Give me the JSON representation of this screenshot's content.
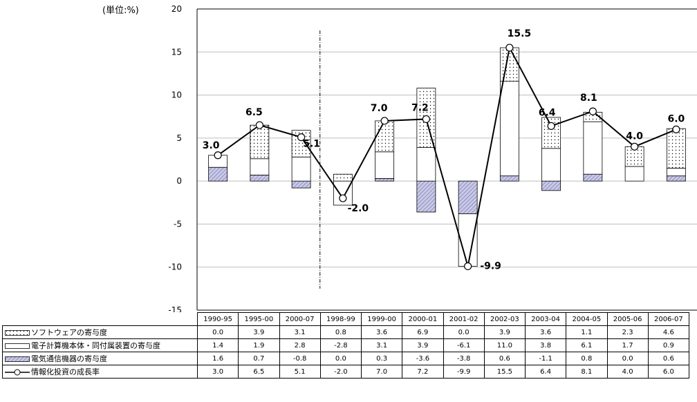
{
  "unit_label": "(単位:%)",
  "chart_data": {
    "type": "bar",
    "categories": [
      "1990-95",
      "1995-00",
      "2000-07",
      "1998-99",
      "1999-00",
      "2000-01",
      "2001-02",
      "2002-03",
      "2003-04",
      "2004-05",
      "2005-06",
      "2006-07"
    ],
    "ylim": [
      -15,
      20
    ],
    "yticks": [
      20,
      15,
      10,
      5,
      0,
      -5,
      -10,
      -15
    ],
    "grid": true,
    "stacked": true,
    "series": [
      {
        "name": "ソフトウェアの寄与度",
        "kind": "bar",
        "pattern": "dots",
        "values": [
          0.0,
          3.9,
          3.1,
          0.8,
          3.6,
          6.9,
          0.0,
          3.9,
          3.6,
          1.1,
          2.3,
          4.6
        ],
        "display": [
          "0.0",
          "3.9",
          "3.1",
          "0.8",
          "3.6",
          "6.9",
          "0.0",
          "3.9",
          "3.6",
          "1.1",
          "2.3",
          "4.6"
        ]
      },
      {
        "name": "電子計算機本体・同付属装置の寄与度",
        "kind": "bar",
        "pattern": "white",
        "values": [
          1.4,
          1.9,
          2.8,
          -2.8,
          3.1,
          3.9,
          -6.1,
          11.0,
          3.8,
          6.1,
          1.7,
          0.9
        ],
        "display": [
          "1.4",
          "1.9",
          "2.8",
          "-2.8",
          "3.1",
          "3.9",
          "-6.1",
          "11.0",
          "3.8",
          "6.1",
          "1.7",
          "0.9"
        ]
      },
      {
        "name": "電気通信機器の寄与度",
        "kind": "bar",
        "pattern": "hatch",
        "values": [
          1.6,
          0.7,
          -0.8,
          0.0,
          0.3,
          -3.6,
          -3.8,
          0.6,
          -1.1,
          0.8,
          0.0,
          0.6
        ],
        "display": [
          "1.6",
          "0.7",
          "-0.8",
          "0.0",
          "0.3",
          "-3.6",
          "-3.8",
          "0.6",
          "-1.1",
          "0.8",
          "0.0",
          "0.6"
        ]
      },
      {
        "name": "情報化投資の成長率",
        "kind": "line",
        "values": [
          3.0,
          6.5,
          5.1,
          -2.0,
          7.0,
          7.2,
          -9.9,
          15.5,
          6.4,
          8.1,
          4.0,
          6.0
        ],
        "display": [
          "3.0",
          "6.5",
          "5.1",
          "-2.0",
          "7.0",
          "7.2",
          "-9.9",
          "15.5",
          "6.4",
          "8.1",
          "4.0",
          "6.0"
        ]
      }
    ],
    "data_labels": [
      "3.0",
      "6.5",
      "5.1",
      "-2.0",
      "7.0",
      "7.2",
      "-9.9",
      "15.5",
      "6.4",
      "8.1",
      "4.0",
      "6.0"
    ],
    "divider_after_index": 2,
    "table_below": true
  }
}
